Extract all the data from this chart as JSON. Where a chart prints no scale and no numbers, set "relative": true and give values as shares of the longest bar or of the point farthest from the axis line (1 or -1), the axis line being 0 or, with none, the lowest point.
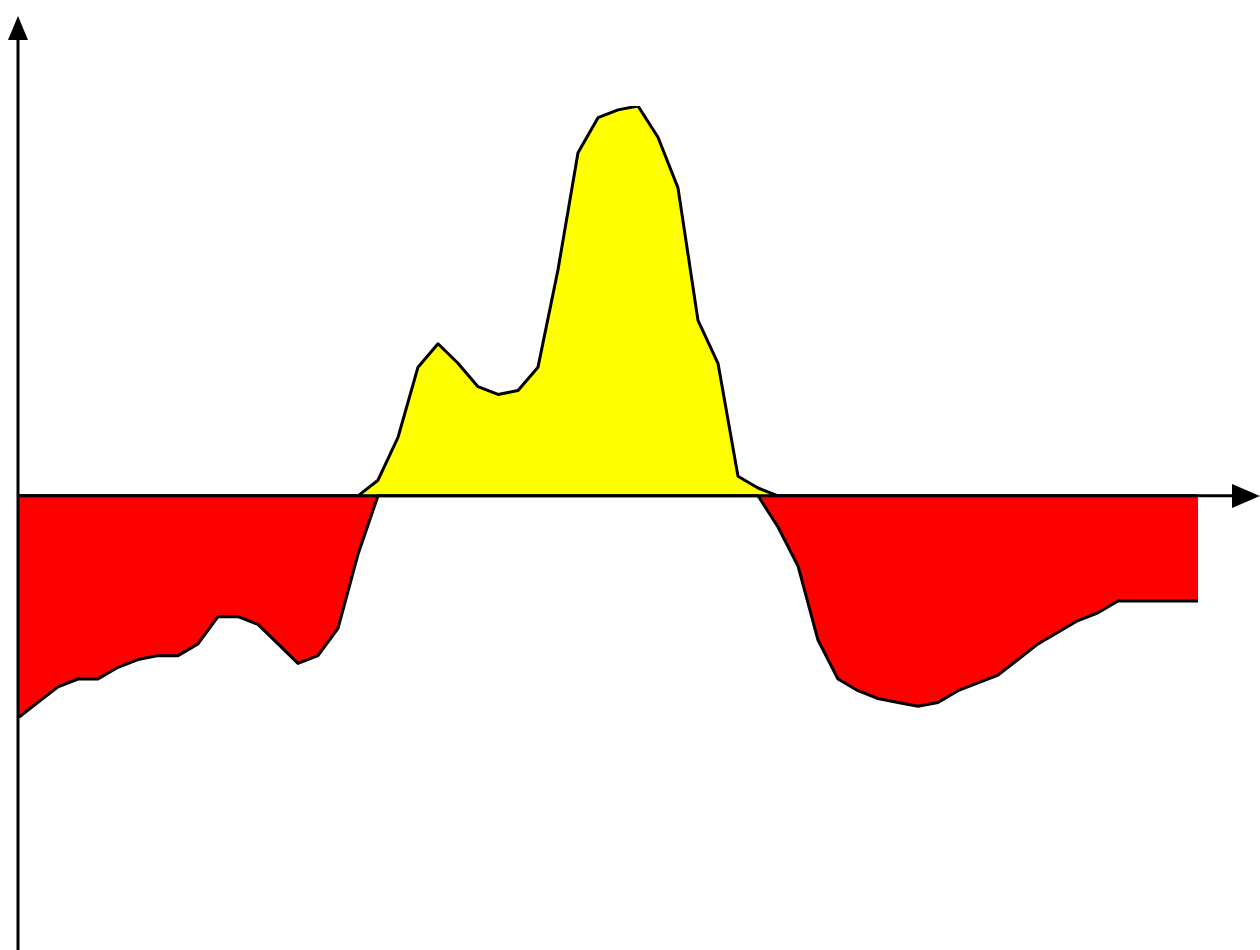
{
  "chart_data": {
    "type": "area",
    "relative": true,
    "categories": [
      null,
      null,
      null,
      null,
      null,
      null,
      null,
      null,
      null,
      null,
      null,
      null,
      null,
      null,
      null,
      null,
      null,
      null,
      null,
      null,
      null,
      null,
      null,
      null,
      null,
      null,
      null,
      null,
      null,
      null,
      null,
      null,
      null,
      null,
      null,
      null,
      null,
      null,
      null,
      null,
      null,
      null,
      null,
      null,
      null,
      null,
      null,
      null,
      null,
      null,
      null,
      null,
      null,
      null,
      null,
      null,
      null,
      null,
      null,
      null
    ],
    "series": [
      {
        "color": "#ff0000",
        "values": [
          -0.57,
          -0.53,
          -0.49,
          -0.47,
          -0.47,
          -0.44,
          -0.42,
          -0.41,
          -0.41,
          -0.38,
          -0.31,
          -0.31,
          -0.33,
          -0.38,
          -0.43,
          -0.41,
          -0.34,
          -0.15,
          0,
          0,
          0,
          0,
          0,
          0,
          0,
          0,
          0,
          0,
          0,
          0,
          0,
          0,
          0,
          0,
          0,
          0,
          0,
          0,
          -0.08,
          -0.18,
          -0.37,
          -0.47,
          -0.5,
          -0.52,
          -0.53,
          -0.54,
          -0.53,
          -0.5,
          -0.48,
          -0.46,
          -0.42,
          -0.38,
          -0.35,
          -0.32,
          -0.3,
          -0.27,
          -0.27,
          -0.27,
          -0.27,
          -0.27
        ]
      },
      {
        "color": "#ffff00",
        "values": [
          0,
          0,
          0,
          0,
          0,
          0,
          0,
          0,
          0,
          0,
          0,
          0,
          0,
          0,
          0,
          0,
          0,
          0,
          0.04,
          0.15,
          0.33,
          0.39,
          0.34,
          0.28,
          0.26,
          0.27,
          0.33,
          0.58,
          0.88,
          0.97,
          0.99,
          1,
          0.92,
          0.79,
          0.45,
          0.34,
          0.05,
          0.02,
          0,
          0,
          0,
          0,
          0,
          0,
          0,
          0,
          0,
          0,
          0,
          0,
          0,
          0,
          0,
          0,
          0,
          0,
          0,
          0,
          0,
          0
        ]
      }
    ],
    "legend": false
  }
}
